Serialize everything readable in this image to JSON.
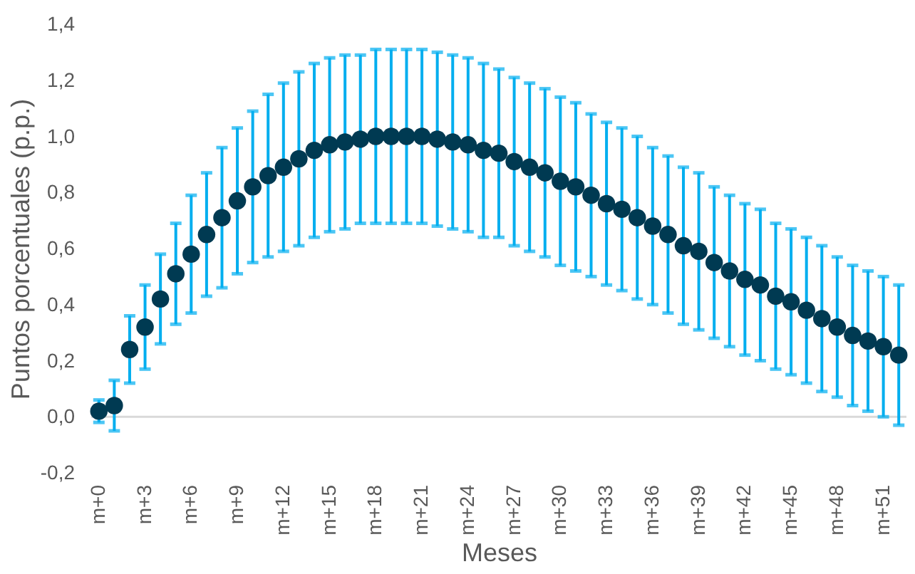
{
  "chart_data": {
    "type": "scatter",
    "xlabel": "Meses",
    "ylabel": "Puntos porcentuales (p.p.)",
    "categories": [
      "m+0",
      null,
      null,
      "m+3",
      null,
      null,
      "m+6",
      null,
      null,
      "m+9",
      null,
      null,
      "m+12",
      null,
      null,
      "m+15",
      null,
      null,
      "m+18",
      null,
      null,
      "m+21",
      null,
      null,
      "m+24",
      null,
      null,
      "m+27",
      null,
      null,
      "m+30",
      null,
      null,
      "m+33",
      null,
      null,
      "m+36",
      null,
      null,
      "m+39",
      null,
      null,
      "m+42",
      null,
      null,
      "m+45",
      null,
      null,
      "m+48",
      null,
      null,
      "m+51",
      null
    ],
    "series": [
      {
        "color": "#003a52",
        "values": [
          0.02,
          0.04,
          0.24,
          0.32,
          0.42,
          0.51,
          0.58,
          0.65,
          0.71,
          0.77,
          0.82,
          0.86,
          0.89,
          0.92,
          0.95,
          0.97,
          0.98,
          0.99,
          1.0,
          1.0,
          1.0,
          1.0,
          0.99,
          0.98,
          0.97,
          0.95,
          0.94,
          0.91,
          0.89,
          0.87,
          0.84,
          0.82,
          0.79,
          0.76,
          0.74,
          0.71,
          0.68,
          0.65,
          0.61,
          0.59,
          0.55,
          0.52,
          0.49,
          0.47,
          0.43,
          0.41,
          0.38,
          0.35,
          0.32,
          0.29,
          0.27,
          0.25,
          0.22
        ],
        "errors": [
          0.04,
          0.09,
          0.12,
          0.15,
          0.16,
          0.18,
          0.21,
          0.22,
          0.25,
          0.26,
          0.27,
          0.29,
          0.3,
          0.31,
          0.31,
          0.31,
          0.31,
          0.3,
          0.31,
          0.31,
          0.31,
          0.31,
          0.31,
          0.31,
          0.31,
          0.31,
          0.3,
          0.3,
          0.3,
          0.3,
          0.3,
          0.3,
          0.29,
          0.29,
          0.29,
          0.29,
          0.28,
          0.28,
          0.28,
          0.28,
          0.27,
          0.27,
          0.27,
          0.27,
          0.26,
          0.26,
          0.26,
          0.26,
          0.25,
          0.25,
          0.25,
          0.25,
          0.25
        ]
      }
    ],
    "ylim": [
      -0.2,
      1.4
    ],
    "yticks": [
      {
        "value": -0.2,
        "label": "-0,2"
      },
      {
        "value": 0,
        "label": "0,0"
      },
      {
        "value": 0.2,
        "label": "0,2"
      },
      {
        "value": 0.4,
        "label": "0,4"
      },
      {
        "value": 0.6,
        "label": "0,6"
      },
      {
        "value": 0.8,
        "label": "0,8"
      },
      {
        "value": 1.0,
        "label": "1,0"
      },
      {
        "value": 1.2,
        "label": "1,2"
      },
      {
        "value": 1.4,
        "label": "1,4"
      }
    ],
    "ref_lines": [
      {
        "axis": "y",
        "value": 0,
        "color": "#d9d9d9"
      }
    ],
    "marker": "circle",
    "grid": false
  }
}
